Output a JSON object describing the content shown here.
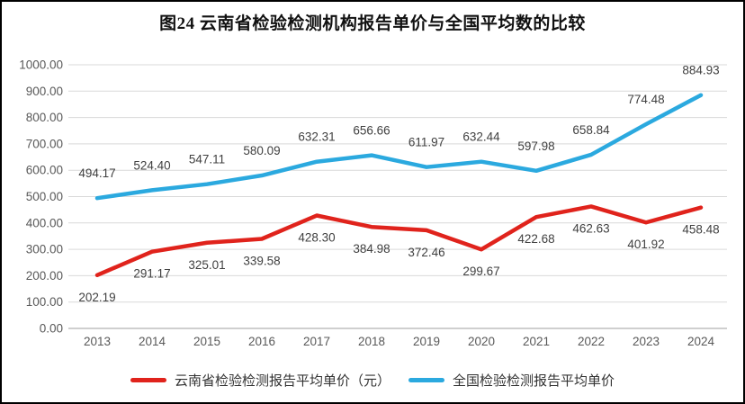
{
  "chart_data": {
    "type": "line",
    "title": "图24 云南省检验检测机构报告单价与全国平均数的比较",
    "categories": [
      "2013",
      "2014",
      "2015",
      "2016",
      "2017",
      "2018",
      "2019",
      "2020",
      "2021",
      "2022",
      "2023",
      "2024"
    ],
    "series": [
      {
        "name": "云南省检验检测报告平均单价（元）",
        "color": "#e0231c",
        "label_position": "below",
        "values": [
          202.19,
          291.17,
          325.01,
          339.58,
          428.3,
          384.98,
          372.46,
          299.67,
          422.68,
          462.63,
          401.92,
          458.48
        ]
      },
      {
        "name": "全国检验检测报告平均单价",
        "color": "#2ba9df",
        "label_position": "above",
        "values": [
          494.17,
          524.4,
          547.11,
          580.09,
          632.31,
          656.66,
          611.97,
          632.44,
          597.98,
          658.84,
          774.48,
          884.93
        ]
      }
    ],
    "ylim": [
      0,
      1000
    ],
    "ytick_step": 100,
    "ytick_format_decimals": 2,
    "grid": true,
    "legend_position": "bottom",
    "colors": {
      "gridline": "#d9d9d9",
      "axis_line": "#bfbfbf",
      "tick_label": "#595959",
      "data_label": "#404040"
    }
  }
}
